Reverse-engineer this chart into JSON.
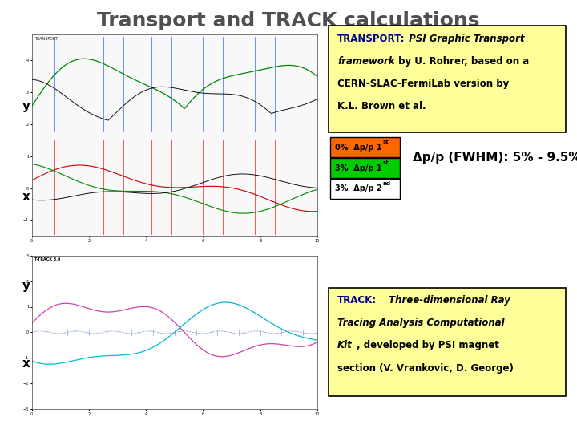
{
  "title": "Transport and TRACK calculations",
  "title_color": "#505050",
  "title_fontsize": 18,
  "bg_color": "#ffffff",
  "transport_box": {
    "bg_color": "#ffff99",
    "border_color": "#000000",
    "bold_color": "#00008B",
    "normal_color": "#000000"
  },
  "legend_items": [
    {
      "label": "0%  Δp/p 1",
      "sup": "st",
      "bg": "#ff6600",
      "border": "#000000",
      "text_color": "#000000"
    },
    {
      "label": "3%  Δp/p 1",
      "sup": "st",
      "bg": "#00cc00",
      "border": "#000000",
      "text_color": "#000000"
    },
    {
      "label": "3%  Δp/p 2",
      "sup": "nd",
      "bg": "#ffffff",
      "border": "#000000",
      "text_color": "#000000"
    }
  ],
  "fwhm_text": "Δp/p (FWHM): 5% - 9.5%",
  "fwhm_fontsize": 11,
  "track_box": {
    "bg_color": "#ffff99",
    "border_color": "#000000",
    "bold_color": "#00008B",
    "normal_color": "#000000"
  },
  "y_label_transport": "y",
  "x_label_transport": "x",
  "y_label_track": "y",
  "x_label_track": "x"
}
